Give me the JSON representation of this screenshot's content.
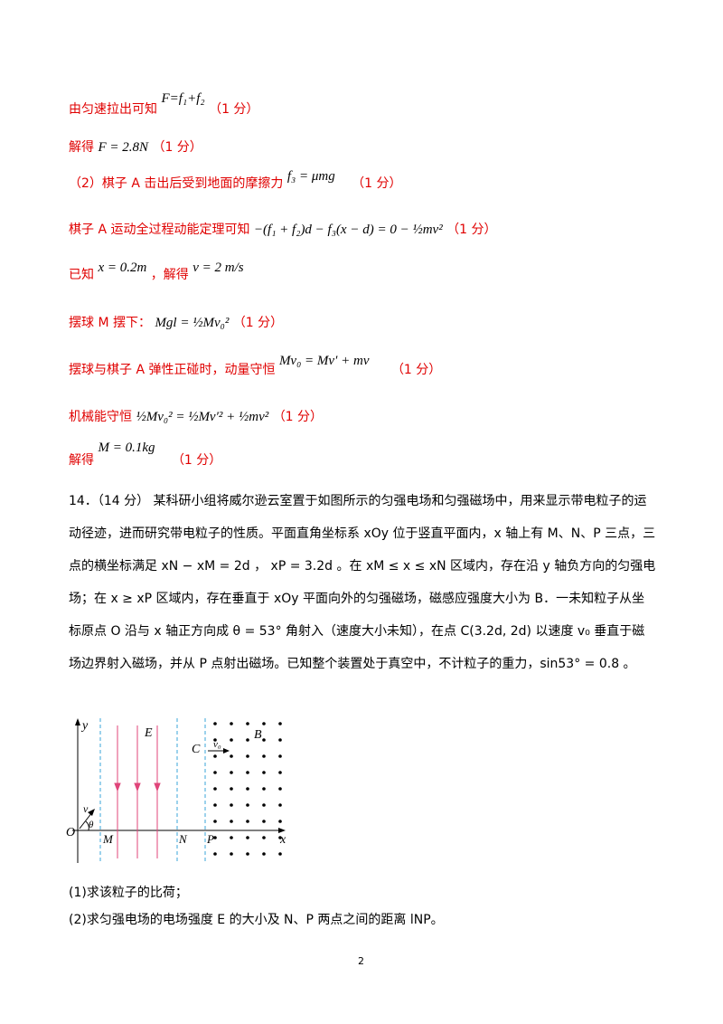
{
  "lines": [
    {
      "text": "由匀速拉出可知",
      "formula": "F=f₁+f₂",
      "score": "（1 分）"
    },
    {
      "text": "解得",
      "formula": "F = 2.8N",
      "score": "（1 分）"
    },
    {
      "text": "（2）棋子 A 击出后受到地面的摩擦力",
      "formula": "f₃ = μmg",
      "score": "（1 分）"
    },
    {
      "text": "棋子 A 运动全过程动能定理可知",
      "formula": "−(f₁ + f₂)d − f₃(x − d) = 0 − ½mv²",
      "score": "（1 分）"
    },
    {
      "text_a": "已知",
      "formula_a": "x = 0.2m",
      "text_b": "，解得",
      "formula_b": "v = 2 m/s"
    },
    {
      "text": "摆球 M 摆下：",
      "formula": "Mgl = ½Mv₀²",
      "score": "（1 分）"
    },
    {
      "text": "摆球与棋子 A 弹性正碰时，动量守恒",
      "formula": "Mv₀ = Mv′ + mv",
      "score": "（1 分）"
    },
    {
      "text": "机械能守恒",
      "formula": "½Mv₀² = ½Mv′² + ½mv²",
      "score": "（1 分）"
    },
    {
      "text": "解得",
      "formula": "M = 0.1kg",
      "score": "（1 分）"
    }
  ],
  "problem": {
    "number": "14．（14 分）",
    "body": "某科研小组将威尔逊云室置于如图所示的匀强电场和匀强磁场中，用来显示带电粒子的运动径迹，进而研究带电粒子的性质。平面直角坐标系 xOy 位于竖直平面内，x 轴上有 M、N、P 三点，三点的横坐标满足 xN − xM = 2d ， xP = 3.2d 。在 xM ≤ x ≤ xN 区域内，存在沿 y 轴负方向的匀强电场；在 x ≥ xP 区域内，存在垂直于 xOy 平面向外的匀强磁场，磁感应强度大小为 B．一未知粒子从坐标原点 O 沿与 x 轴正方向成 θ = 53° 角射入（速度大小未知），在点 C(3.2d, 2d) 以速度 v₀ 垂直于磁场边界射入磁场，并从 P 点射出磁场。已知整个装置处于真空中，不计粒子的重力，sin53° = 0.8 。"
  },
  "figure": {
    "labels": {
      "y": "y",
      "x": "x",
      "O": "O",
      "M": "M",
      "N": "N",
      "P": "P",
      "E": "E",
      "B": "B",
      "C": "C",
      "v0": "v₀",
      "v": "v",
      "theta": "θ"
    },
    "colors": {
      "field_line": "#e0457a",
      "boundary": "#3aa6d8",
      "axis": "#000000"
    }
  },
  "questions": [
    "(1)求该粒子的比荷；",
    "(2)求匀强电场的电场强度 E 的大小及 N、P 两点之间的距离 lNP。"
  ],
  "page_number": "2"
}
